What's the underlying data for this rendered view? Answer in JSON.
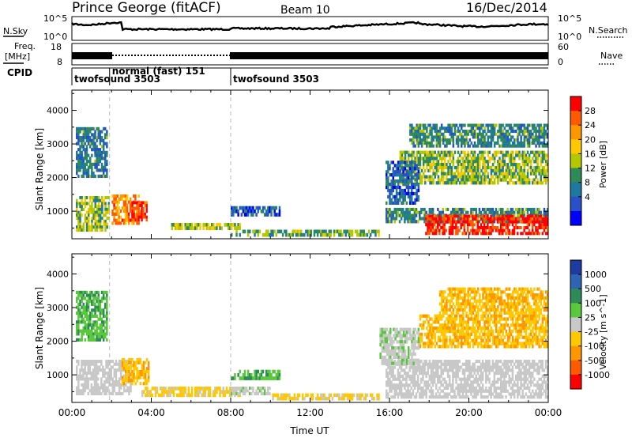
{
  "header": {
    "station": "Prince George (fitACF)",
    "beam": "Beam 10",
    "date": "16/Dec/2014"
  },
  "top_panels": {
    "nsky_label": "N.Sky",
    "nsky_ticks": [
      "10^5",
      "10^0"
    ],
    "nsearch_label": "N.Search",
    "nsearch_ticks": [
      "10^5",
      "10^0"
    ],
    "freq_label_1": "Freq.",
    "freq_label_2": "[MHz]",
    "freq_ticks": [
      "18",
      "8"
    ],
    "nave_label": "Nave",
    "nave_ticks": [
      "60",
      "0"
    ],
    "cpid_label": "CPID",
    "cpid_modes": [
      {
        "label": "twofsound 3503",
        "start_hour": 0.0,
        "end_hour": 1.9
      },
      {
        "label": "normal (fast) 151",
        "start_hour": 1.9,
        "end_hour": 8.0
      },
      {
        "label": "twofsound 3503",
        "start_hour": 8.0,
        "end_hour": 24.0
      }
    ]
  },
  "chart_data": [
    {
      "type": "heatmap",
      "title": "",
      "xlabel": "Time UT",
      "ylabel": "Slant Range [km]",
      "xlim": [
        0,
        24
      ],
      "ylim": [
        180,
        4600
      ],
      "x_ticks": [
        "00:00",
        "04:00",
        "08:00",
        "12:00",
        "16:00",
        "20:00",
        "00:00"
      ],
      "y_ticks": [
        "1000",
        "2000",
        "3000",
        "4000"
      ],
      "y_tick_values": [
        1000,
        2000,
        3000,
        4000
      ],
      "colorbar_label": "Power [dB]",
      "colorbar_ticks": [
        "28",
        "24",
        "20",
        "16",
        "12",
        "8",
        "4"
      ],
      "colorbar_colors": [
        "#ff0000",
        "#ff5a00",
        "#ff9600",
        "#ffc800",
        "#b4c800",
        "#2e8b57",
        "#1e78a0",
        "#2850c8",
        "#0000ff"
      ],
      "colorbar_range": [
        0,
        30
      ],
      "regions": [
        {
          "t0": 0.2,
          "t1": 1.9,
          "r0": 400,
          "r1": 1450,
          "value": 14
        },
        {
          "t0": 2.0,
          "t1": 3.4,
          "r0": 600,
          "r1": 1500,
          "value": 22
        },
        {
          "t0": 3.0,
          "t1": 3.8,
          "r0": 700,
          "r1": 1300,
          "value": 27
        },
        {
          "t0": 5.0,
          "t1": 8.5,
          "r0": 450,
          "r1": 650,
          "value": 15
        },
        {
          "t0": 8.0,
          "t1": 10.5,
          "r0": 850,
          "r1": 1150,
          "value": 6
        },
        {
          "t0": 8.0,
          "t1": 15.5,
          "r0": 250,
          "r1": 450,
          "value": 12
        },
        {
          "t0": 15.8,
          "t1": 24.0,
          "r0": 650,
          "r1": 1100,
          "value": 10
        },
        {
          "t0": 17.8,
          "t1": 24.0,
          "r0": 300,
          "r1": 900,
          "value": 28
        },
        {
          "t0": 16.5,
          "t1": 24.0,
          "r0": 1800,
          "r1": 2800,
          "value": 14
        },
        {
          "t0": 17.0,
          "t1": 24.0,
          "r0": 2900,
          "r1": 3600,
          "value": 10
        },
        {
          "t0": 0.2,
          "t1": 1.8,
          "r0": 2000,
          "r1": 3500,
          "value": 9
        },
        {
          "t0": 15.8,
          "t1": 17.5,
          "r0": 1200,
          "r1": 2500,
          "value": 7
        }
      ]
    },
    {
      "type": "heatmap",
      "title": "",
      "xlabel": "Time UT",
      "ylabel": "Slant Range [km]",
      "xlim": [
        0,
        24
      ],
      "ylim": [
        180,
        4600
      ],
      "x_ticks": [
        "00:00",
        "04:00",
        "08:00",
        "12:00",
        "16:00",
        "20:00",
        "00:00"
      ],
      "y_ticks": [
        "1000",
        "2000",
        "3000",
        "4000"
      ],
      "y_tick_values": [
        1000,
        2000,
        3000,
        4000
      ],
      "colorbar_label": "Velocity [m s^-1]",
      "colorbar_ticks": [
        "1000",
        "500",
        "100",
        "25",
        "-25",
        "-100",
        "-500",
        "-1000"
      ],
      "colorbar_colors": [
        "#1e3ca0",
        "#2e64b4",
        "#2e8b57",
        "#5ac83c",
        "#c8c8c8",
        "#ffc800",
        "#ff9600",
        "#ff5a00",
        "#ff0000"
      ],
      "colorbar_range": [
        -1000,
        1000
      ],
      "regions": [
        {
          "t0": 0.2,
          "t1": 3.0,
          "r0": 400,
          "r1": 1450,
          "value": 0
        },
        {
          "t0": 2.5,
          "t1": 3.9,
          "r0": 700,
          "r1": 1500,
          "value": -300
        },
        {
          "t0": 3.5,
          "t1": 8.5,
          "r0": 350,
          "r1": 650,
          "value": -150
        },
        {
          "t0": 8.0,
          "t1": 10.0,
          "r0": 400,
          "r1": 650,
          "value": 60
        },
        {
          "t0": 8.0,
          "t1": 10.5,
          "r0": 850,
          "r1": 1150,
          "value": 300
        },
        {
          "t0": 10.0,
          "t1": 15.5,
          "r0": 250,
          "r1": 450,
          "value": -150
        },
        {
          "t0": 15.8,
          "t1": 24.0,
          "r0": 300,
          "r1": 1450,
          "value": 0
        },
        {
          "t0": 17.5,
          "t1": 24.0,
          "r0": 1800,
          "r1": 2800,
          "value": -300
        },
        {
          "t0": 18.5,
          "t1": 24.0,
          "r0": 2800,
          "r1": 3600,
          "value": -300
        },
        {
          "t0": 0.2,
          "t1": 1.8,
          "r0": 2000,
          "r1": 3500,
          "value": 300
        },
        {
          "t0": 15.5,
          "t1": 17.5,
          "r0": 1300,
          "r1": 2400,
          "value": 60
        }
      ]
    }
  ]
}
